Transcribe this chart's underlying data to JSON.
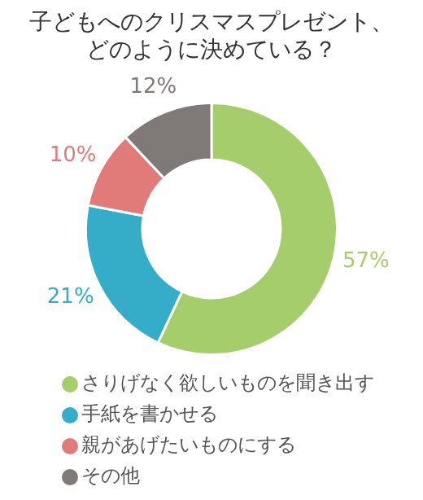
{
  "chart_data": {
    "type": "donut",
    "title": "子どもへのクリスマスプレゼント、どのように決めている？",
    "categories": [
      "さりげなく欲しいものを聞き出す",
      "手紙を書かせる",
      "親があげたいものにする",
      "その他"
    ],
    "values": [
      57,
      21,
      10,
      12
    ],
    "colors": [
      "#a5cd6b",
      "#35adc9",
      "#e07b79",
      "#7f7a78"
    ],
    "value_labels": [
      "57%",
      "21%",
      "10%",
      "12%"
    ],
    "legend": "bottom"
  }
}
